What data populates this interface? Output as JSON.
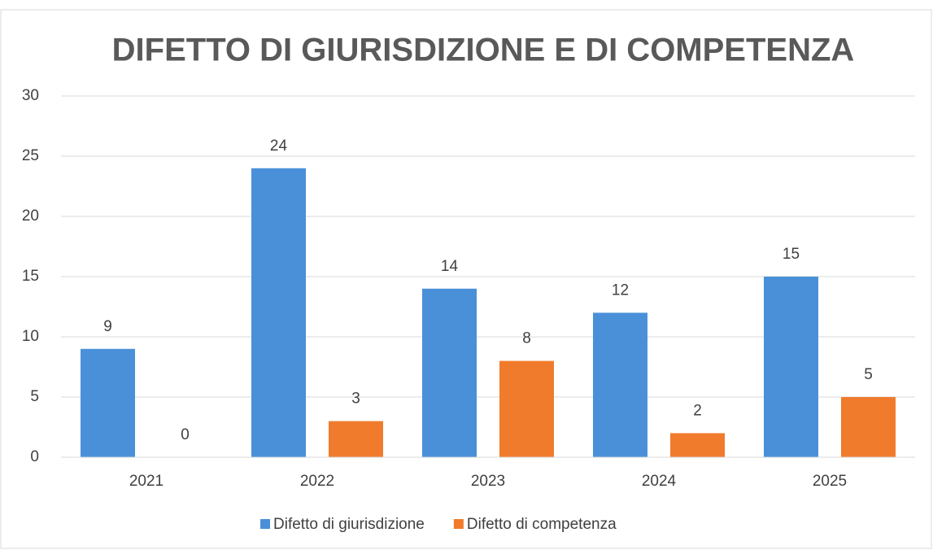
{
  "chart_data": {
    "type": "bar",
    "title": "DIFETTO DI GIURISDIZIONE E DI COMPETENZA",
    "categories": [
      "2021",
      "2022",
      "2023",
      "2024",
      "2025"
    ],
    "series": [
      {
        "name": "Difetto di giurisdizione",
        "color": "#4a90d9",
        "values": [
          9,
          24,
          14,
          12,
          15
        ]
      },
      {
        "name": "Difetto di competenza",
        "color": "#f07b2c",
        "values": [
          0,
          3,
          8,
          2,
          5
        ]
      }
    ],
    "ylim": [
      0,
      30
    ],
    "yticks": [
      0,
      5,
      10,
      15,
      20,
      25,
      30
    ],
    "grid": true,
    "legend": "bottom"
  }
}
